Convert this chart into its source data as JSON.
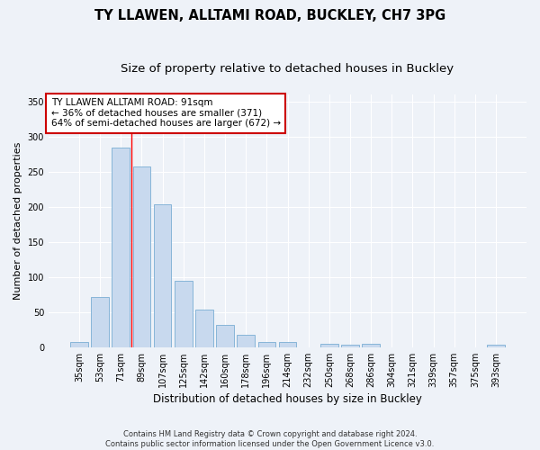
{
  "title": "TY LLAWEN, ALLTAMI ROAD, BUCKLEY, CH7 3PG",
  "subtitle": "Size of property relative to detached houses in Buckley",
  "xlabel": "Distribution of detached houses by size in Buckley",
  "ylabel": "Number of detached properties",
  "bar_color": "#c8d9ee",
  "bar_edge_color": "#7aadd4",
  "background_color": "#eef2f8",
  "grid_color": "#ffffff",
  "categories": [
    "35sqm",
    "53sqm",
    "71sqm",
    "89sqm",
    "107sqm",
    "125sqm",
    "142sqm",
    "160sqm",
    "178sqm",
    "196sqm",
    "214sqm",
    "232sqm",
    "250sqm",
    "268sqm",
    "286sqm",
    "304sqm",
    "321sqm",
    "339sqm",
    "357sqm",
    "375sqm",
    "393sqm"
  ],
  "values": [
    8,
    72,
    285,
    258,
    204,
    95,
    53,
    32,
    18,
    7,
    7,
    0,
    5,
    3,
    5,
    0,
    0,
    0,
    0,
    0,
    3
  ],
  "ylim": [
    0,
    360
  ],
  "yticks": [
    0,
    50,
    100,
    150,
    200,
    250,
    300,
    350
  ],
  "property_line_x": 2.5,
  "annotation_text": "TY LLAWEN ALLTAMI ROAD: 91sqm\n← 36% of detached houses are smaller (371)\n64% of semi-detached houses are larger (672) →",
  "annotation_box_color": "#ffffff",
  "annotation_box_edge_color": "#cc0000",
  "footnote": "Contains HM Land Registry data © Crown copyright and database right 2024.\nContains public sector information licensed under the Open Government Licence v3.0.",
  "title_fontsize": 10.5,
  "subtitle_fontsize": 9.5,
  "xlabel_fontsize": 8.5,
  "ylabel_fontsize": 8,
  "tick_fontsize": 7,
  "annotation_fontsize": 7.5,
  "footnote_fontsize": 6
}
